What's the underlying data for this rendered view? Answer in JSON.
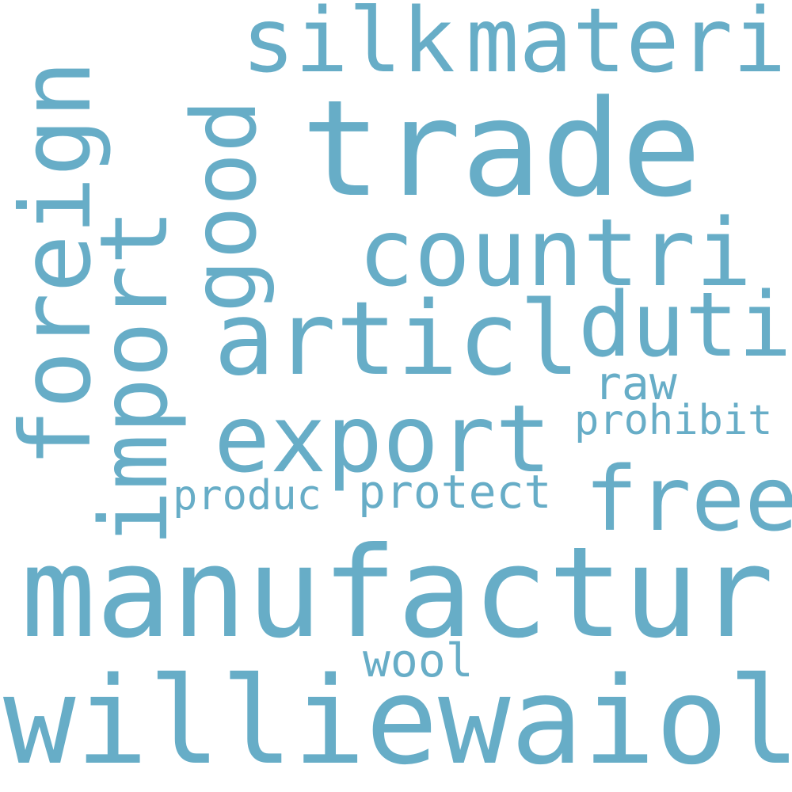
{
  "color": "#67adc7",
  "background": "#ffffff",
  "words": {
    "silk": "silk",
    "materi": "materi",
    "trade": "trade",
    "foreign": "foreign",
    "good": "good",
    "import": "import",
    "countri": "countri",
    "articl": "articl",
    "duti": "duti",
    "raw": "raw",
    "export": "export",
    "prohibit": "prohibit",
    "free": "free",
    "produc": "produc",
    "protect": "protect",
    "manufactur": "manufactur",
    "wool": "wool",
    "williewaiola": "williewaiola"
  }
}
